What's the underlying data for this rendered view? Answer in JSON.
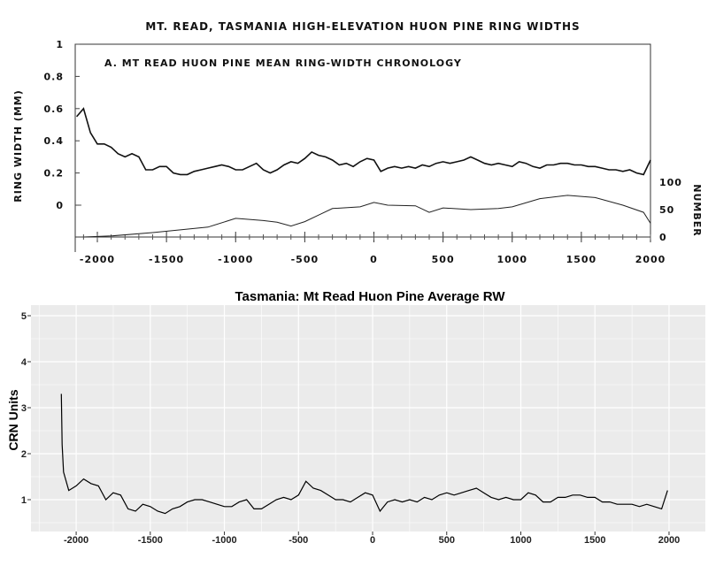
{
  "chart_data": [
    {
      "type": "line",
      "title": "MT. READ, TASMANIA HIGH-ELEVATION HUON PINE RING WIDTHS",
      "subtitle": "A.  MT READ HUON PINE MEAN RING-WIDTH CHRONOLOGY",
      "ylabel": "RING WIDTH (MM)",
      "y2label": "NUMBER",
      "xlim": [
        -2160,
        2000
      ],
      "ylim": [
        0,
        1
      ],
      "y2lim": [
        0,
        100
      ],
      "xticks": [
        "-2000",
        "-1500",
        "-1000",
        "-500",
        "0",
        "500",
        "1000",
        "1500",
        "2000"
      ],
      "yticks": [
        "1",
        "0.8",
        "0.6",
        "0.4",
        "0.2",
        "0"
      ],
      "y2ticks": [
        "100",
        "50",
        "0"
      ],
      "grid": false,
      "series": [
        {
          "role": "ring-width",
          "axis": "left",
          "x": [
            -2150,
            -2100,
            -2050,
            -2000,
            -1950,
            -1900,
            -1850,
            -1800,
            -1750,
            -1700,
            -1650,
            -1600,
            -1550,
            -1500,
            -1450,
            -1400,
            -1350,
            -1300,
            -1250,
            -1200,
            -1150,
            -1100,
            -1050,
            -1000,
            -950,
            -900,
            -850,
            -800,
            -750,
            -700,
            -650,
            -600,
            -550,
            -500,
            -450,
            -400,
            -350,
            -300,
            -250,
            -200,
            -150,
            -100,
            -50,
            0,
            50,
            100,
            150,
            200,
            250,
            300,
            350,
            400,
            450,
            500,
            550,
            600,
            650,
            700,
            750,
            800,
            850,
            900,
            950,
            1000,
            1050,
            1100,
            1150,
            1200,
            1250,
            1300,
            1350,
            1400,
            1450,
            1500,
            1550,
            1600,
            1650,
            1700,
            1750,
            1800,
            1850,
            1900,
            1950,
            2000
          ],
          "y": [
            0.55,
            0.6,
            0.45,
            0.38,
            0.38,
            0.36,
            0.32,
            0.3,
            0.32,
            0.3,
            0.22,
            0.22,
            0.24,
            0.24,
            0.2,
            0.19,
            0.19,
            0.21,
            0.22,
            0.23,
            0.24,
            0.25,
            0.24,
            0.22,
            0.22,
            0.24,
            0.26,
            0.22,
            0.2,
            0.22,
            0.25,
            0.27,
            0.26,
            0.29,
            0.33,
            0.31,
            0.3,
            0.28,
            0.25,
            0.26,
            0.24,
            0.27,
            0.29,
            0.28,
            0.21,
            0.23,
            0.24,
            0.23,
            0.24,
            0.23,
            0.25,
            0.24,
            0.26,
            0.27,
            0.26,
            0.27,
            0.28,
            0.3,
            0.28,
            0.26,
            0.25,
            0.26,
            0.25,
            0.24,
            0.27,
            0.26,
            0.24,
            0.23,
            0.25,
            0.25,
            0.26,
            0.26,
            0.25,
            0.25,
            0.24,
            0.24,
            0.23,
            0.22,
            0.22,
            0.21,
            0.22,
            0.2,
            0.19,
            0.28
          ]
        },
        {
          "role": "sample-depth",
          "axis": "right",
          "x": [
            -2100,
            -1900,
            -1600,
            -1400,
            -1200,
            -1000,
            -800,
            -700,
            -600,
            -500,
            -400,
            -300,
            -100,
            0,
            100,
            300,
            400,
            500,
            700,
            900,
            1000,
            1200,
            1400,
            1600,
            1800,
            1950,
            2000
          ],
          "y": [
            0,
            2,
            8,
            13,
            18,
            34,
            30,
            27,
            20,
            28,
            40,
            52,
            55,
            63,
            58,
            57,
            45,
            53,
            50,
            52,
            55,
            70,
            76,
            72,
            58,
            45,
            25
          ]
        }
      ]
    },
    {
      "type": "line",
      "title": "Tasmania: Mt Read Huon Pine Average RW",
      "xlabel": "",
      "ylabel": "CRN Units",
      "xlim": [
        -2305,
        2245
      ],
      "ylim": [
        0.3,
        5.23
      ],
      "xticks": [
        "-2000",
        "-1500",
        "-1000",
        "-500",
        "0",
        "500",
        "1000",
        "1500",
        "2000"
      ],
      "yticks": [
        "5",
        "4",
        "3",
        "2",
        "1"
      ],
      "grid": true,
      "background": "#ebebeb",
      "series": [
        {
          "x": [
            -2100,
            -2095,
            -2085,
            -2050,
            -2000,
            -1950,
            -1900,
            -1850,
            -1800,
            -1750,
            -1700,
            -1650,
            -1600,
            -1550,
            -1500,
            -1450,
            -1400,
            -1350,
            -1300,
            -1250,
            -1200,
            -1150,
            -1100,
            -1050,
            -1000,
            -950,
            -900,
            -850,
            -800,
            -750,
            -700,
            -650,
            -600,
            -550,
            -500,
            -450,
            -400,
            -350,
            -300,
            -250,
            -200,
            -150,
            -100,
            -50,
            0,
            50,
            100,
            150,
            200,
            250,
            300,
            350,
            400,
            450,
            500,
            550,
            600,
            650,
            700,
            750,
            800,
            850,
            900,
            950,
            1000,
            1050,
            1100,
            1150,
            1200,
            1250,
            1300,
            1350,
            1400,
            1450,
            1500,
            1550,
            1600,
            1650,
            1700,
            1750,
            1800,
            1850,
            1900,
            1950,
            1990
          ],
          "y": [
            3.3,
            2.2,
            1.6,
            1.2,
            1.3,
            1.45,
            1.35,
            1.3,
            1.0,
            1.15,
            1.1,
            0.8,
            0.75,
            0.9,
            0.85,
            0.75,
            0.7,
            0.8,
            0.85,
            0.95,
            1.0,
            1.0,
            0.95,
            0.9,
            0.85,
            0.85,
            0.95,
            1.0,
            0.8,
            0.8,
            0.9,
            1.0,
            1.05,
            1.0,
            1.1,
            1.4,
            1.25,
            1.2,
            1.1,
            1.0,
            1.0,
            0.95,
            1.05,
            1.15,
            1.1,
            0.75,
            0.95,
            1.0,
            0.95,
            1.0,
            0.95,
            1.05,
            1.0,
            1.1,
            1.15,
            1.1,
            1.15,
            1.2,
            1.25,
            1.15,
            1.05,
            1.0,
            1.05,
            1.0,
            1.0,
            1.15,
            1.1,
            0.95,
            0.95,
            1.05,
            1.05,
            1.1,
            1.1,
            1.05,
            1.05,
            0.95,
            0.95,
            0.9,
            0.9,
            0.9,
            0.85,
            0.9,
            0.85,
            0.8,
            1.2
          ]
        }
      ]
    }
  ]
}
